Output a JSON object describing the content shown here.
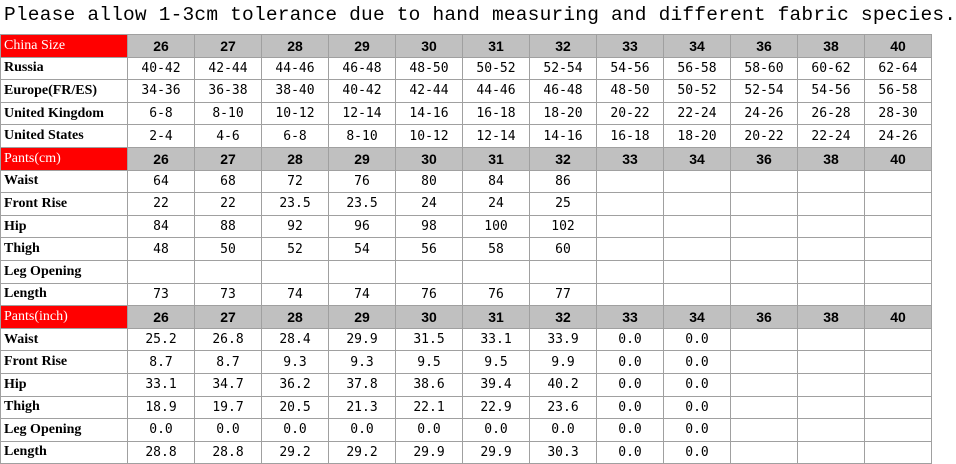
{
  "title": "Please allow 1-3cm tolerance due to hand measuring and different fabric species.",
  "sections": [
    {
      "header": {
        "label": "China Size",
        "sizes": [
          26,
          27,
          28,
          29,
          30,
          31,
          32,
          33,
          34,
          36,
          38,
          40
        ]
      },
      "rows": [
        {
          "label": "Russia",
          "cells": [
            "40-42",
            "42-44",
            "44-46",
            "46-48",
            "48-50",
            "50-52",
            "52-54",
            "54-56",
            "56-58",
            "58-60",
            "60-62",
            "62-64"
          ]
        },
        {
          "label": "Europe(FR/ES)",
          "cells": [
            "34-36",
            "36-38",
            "38-40",
            "40-42",
            "42-44",
            "44-46",
            "46-48",
            "48-50",
            "50-52",
            "52-54",
            "54-56",
            "56-58"
          ]
        },
        {
          "label": "United Kingdom",
          "cells": [
            "6-8",
            "8-10",
            "10-12",
            "12-14",
            "14-16",
            "16-18",
            "18-20",
            "20-22",
            "22-24",
            "24-26",
            "26-28",
            "28-30"
          ]
        },
        {
          "label": "United States",
          "cells": [
            "2-4",
            "4-6",
            "6-8",
            "8-10",
            "10-12",
            "12-14",
            "14-16",
            "16-18",
            "18-20",
            "20-22",
            "22-24",
            "24-26"
          ]
        }
      ]
    },
    {
      "header": {
        "label": "Pants(cm)",
        "sizes": [
          26,
          27,
          28,
          29,
          30,
          31,
          32,
          33,
          34,
          36,
          38,
          40
        ]
      },
      "rows": [
        {
          "label": "Waist",
          "cells": [
            "64",
            "68",
            "72",
            "76",
            "80",
            "84",
            "86"
          ]
        },
        {
          "label": "Front Rise",
          "cells": [
            "22",
            "22",
            "23.5",
            "23.5",
            "24",
            "24",
            "25"
          ]
        },
        {
          "label": "Hip",
          "cells": [
            "84",
            "88",
            "92",
            "96",
            "98",
            "100",
            "102"
          ]
        },
        {
          "label": "Thigh",
          "cells": [
            "48",
            "50",
            "52",
            "54",
            "56",
            "58",
            "60"
          ]
        },
        {
          "label": "Leg Opening",
          "cells": []
        },
        {
          "label": "Length",
          "cells": [
            "73",
            "73",
            "74",
            "74",
            "76",
            "76",
            "77"
          ]
        }
      ]
    },
    {
      "header": {
        "label": "Pants(inch)",
        "sizes": [
          26,
          27,
          28,
          29,
          30,
          31,
          32,
          33,
          34,
          36,
          38,
          40
        ]
      },
      "rows": [
        {
          "label": "Waist",
          "cells": [
            "25.2",
            "26.8",
            "28.4",
            "29.9",
            "31.5",
            "33.1",
            "33.9",
            "0.0",
            "0.0"
          ]
        },
        {
          "label": "Front Rise",
          "cells": [
            "8.7",
            "8.7",
            "9.3",
            "9.3",
            "9.5",
            "9.5",
            "9.9",
            "0.0",
            "0.0"
          ]
        },
        {
          "label": "Hip",
          "cells": [
            "33.1",
            "34.7",
            "36.2",
            "37.8",
            "38.6",
            "39.4",
            "40.2",
            "0.0",
            "0.0"
          ]
        },
        {
          "label": "Thigh",
          "cells": [
            "18.9",
            "19.7",
            "20.5",
            "21.3",
            "22.1",
            "22.9",
            "23.6",
            "0.0",
            "0.0"
          ]
        },
        {
          "label": "Leg Opening",
          "cells": [
            "0.0",
            "0.0",
            "0.0",
            "0.0",
            "0.0",
            "0.0",
            "0.0",
            "0.0",
            "0.0"
          ]
        },
        {
          "label": "Length",
          "cells": [
            "28.8",
            "28.8",
            "29.2",
            "29.2",
            "29.9",
            "29.9",
            "30.3",
            "0.0",
            "0.0"
          ]
        }
      ]
    }
  ]
}
